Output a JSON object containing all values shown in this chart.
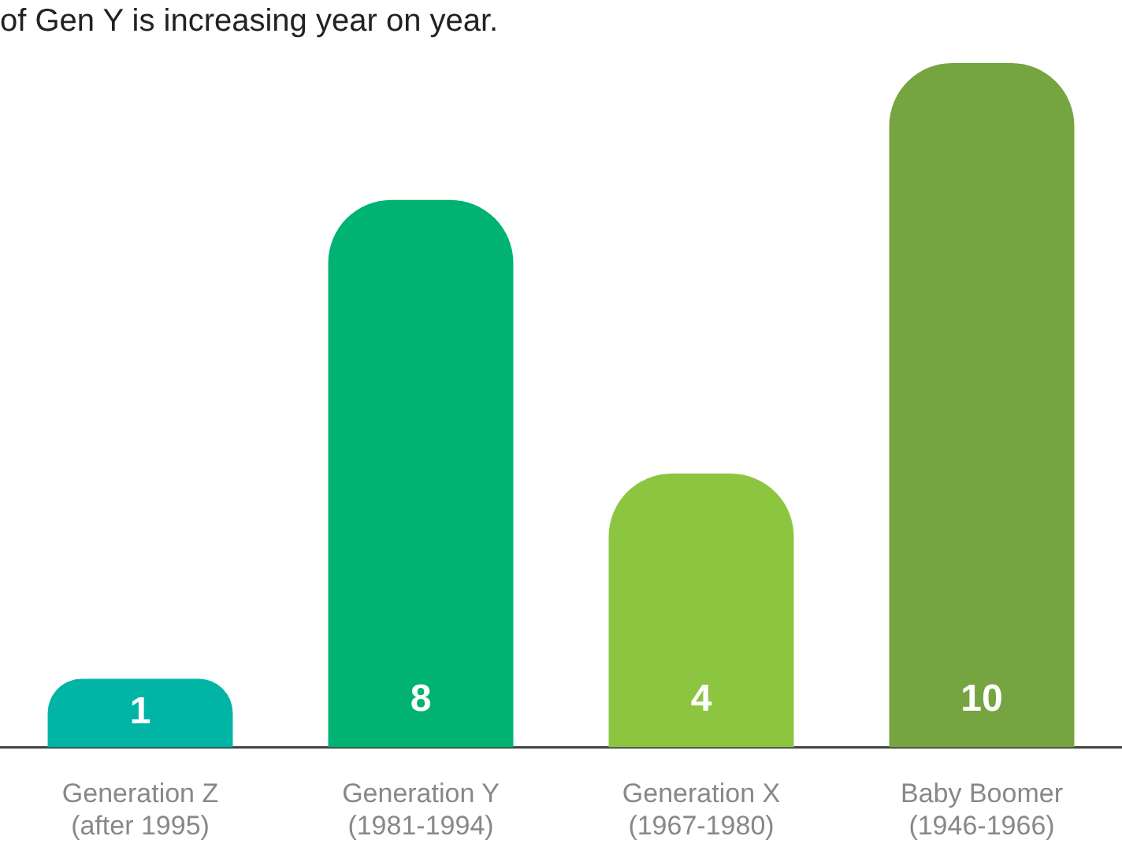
{
  "chart_data": {
    "type": "bar",
    "title": "of Gen Y is increasing year on year.",
    "categories": [
      "Generation Z\n(after 1995)",
      "Generation Y\n(1981-1994)",
      "Generation X\n(1967-1980)",
      "Baby Boomer\n(1946-1966)"
    ],
    "values": [
      1,
      8,
      4,
      10
    ],
    "colors": [
      "#00b5a5",
      "#00b373",
      "#8cc540",
      "#76a440"
    ],
    "data_labels": true,
    "tick_labels": "x",
    "grid": false,
    "legend": false
  }
}
